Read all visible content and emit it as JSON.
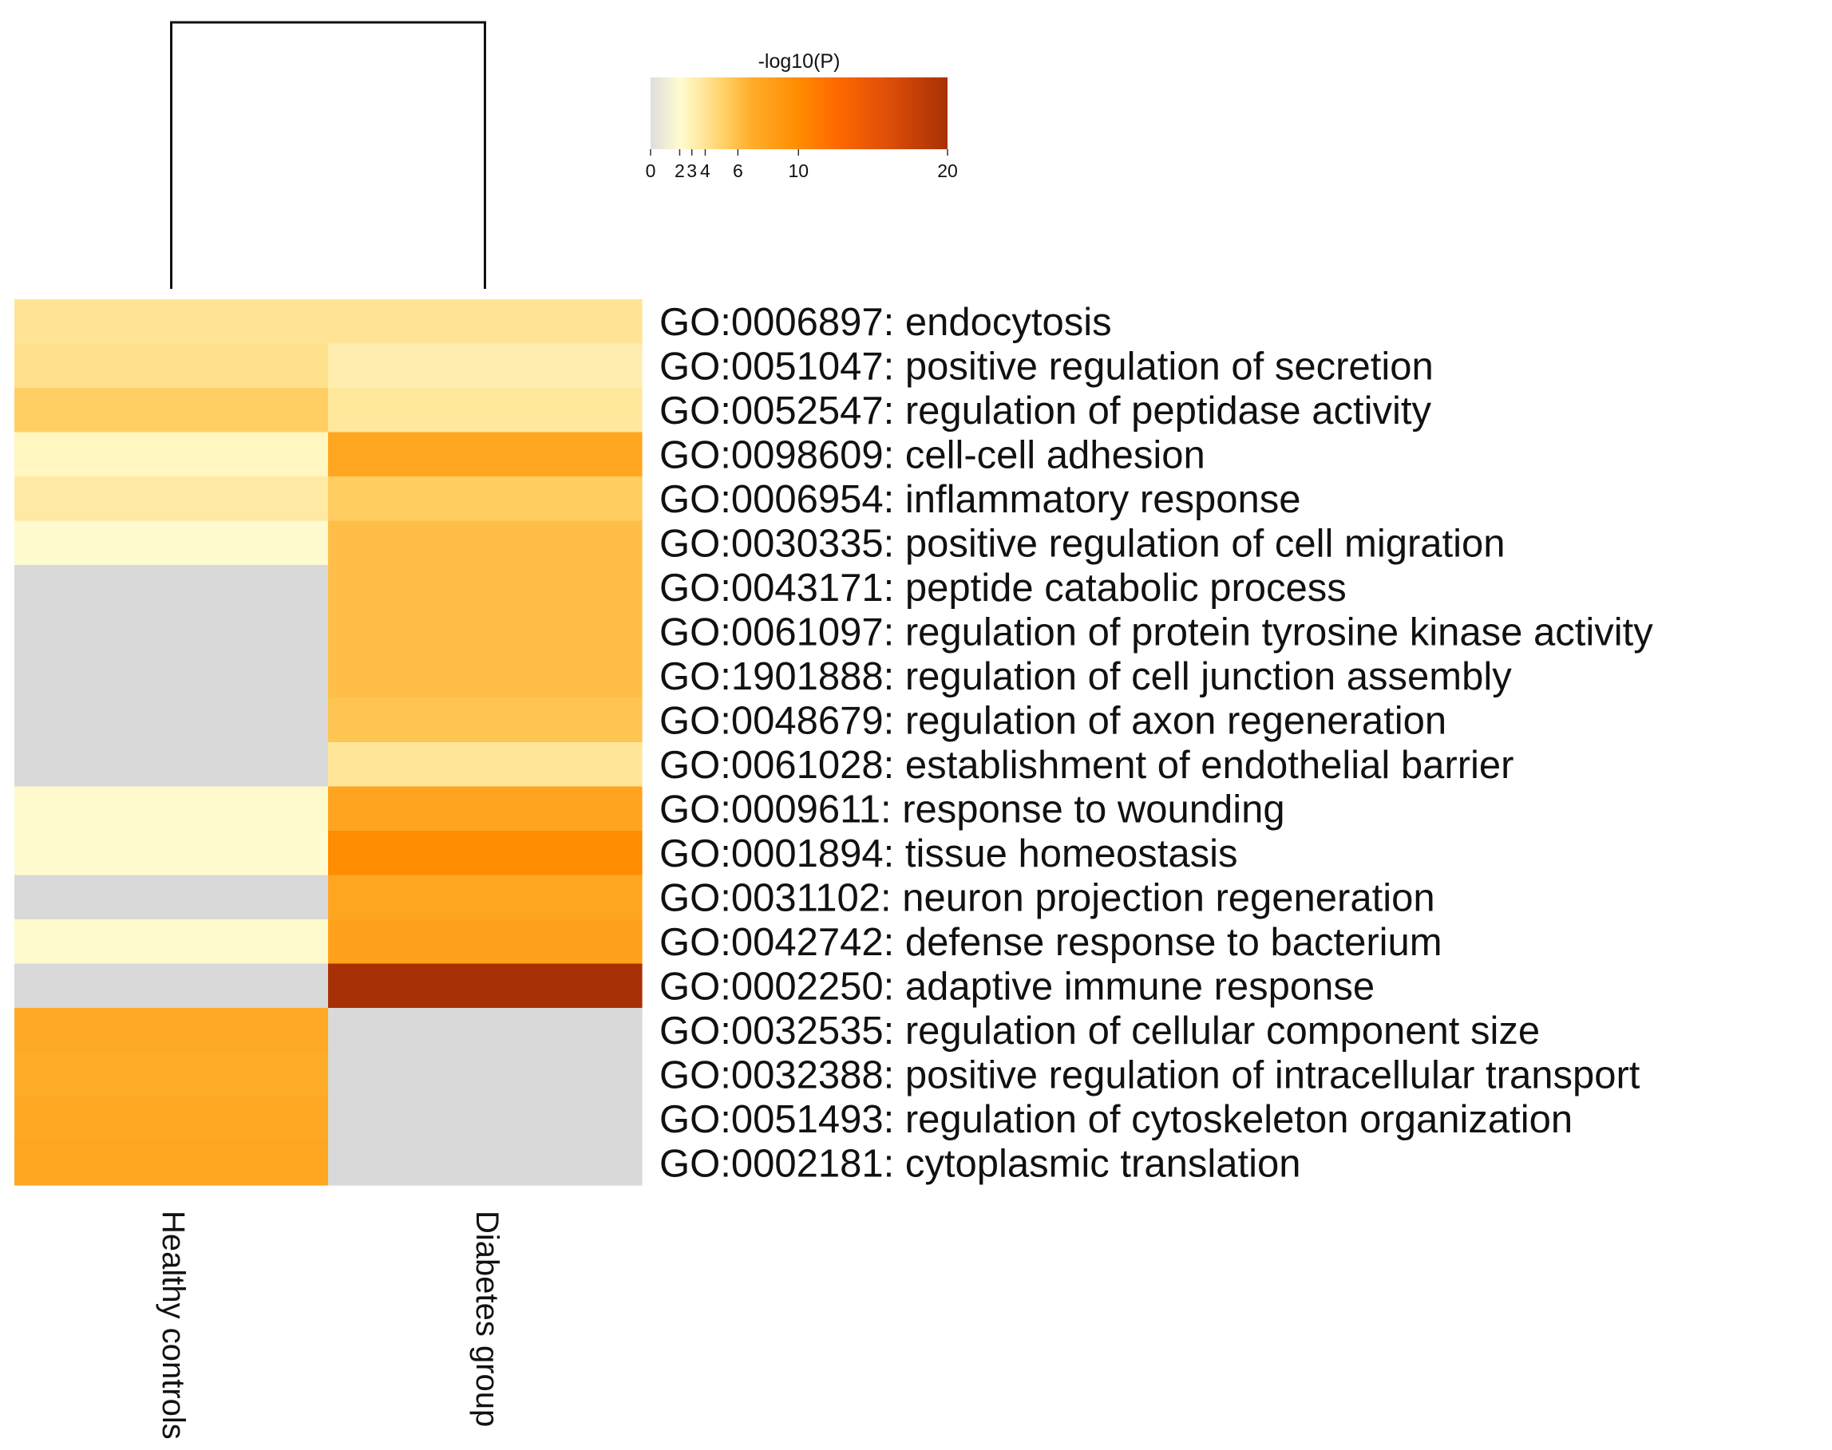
{
  "chart_data": {
    "type": "heatmap",
    "title": "",
    "color_scale": {
      "title": "-log10(P)",
      "tick_labels": [
        "0",
        "2",
        "3",
        "4",
        "6",
        "10",
        "20"
      ],
      "tick_values": [
        0,
        2,
        3,
        4,
        6,
        10,
        20
      ],
      "range": [
        0,
        20
      ],
      "colors": [
        "#dedede",
        "#fffccf",
        "#ffe8a0",
        "#ffd36a",
        "#ffad2a",
        "#ff8c00",
        "#ff6a00",
        "#de4e08",
        "#a83006"
      ]
    },
    "missing_color": "#d9d9d9",
    "dendrogram": "columns",
    "columns": [
      "Healthy controls",
      "Diabetes group"
    ],
    "rows": [
      "GO:0006897: endocytosis",
      "GO:0051047: positive regulation of secretion",
      "GO:0052547: regulation of peptidase activity",
      "GO:0098609: cell-cell adhesion",
      "GO:0006954: inflammatory response",
      "GO:0030335: positive regulation of cell migration",
      "GO:0043171: peptide catabolic process",
      "GO:0061097: regulation of protein tyrosine kinase activity",
      "GO:1901888: regulation of cell junction assembly",
      "GO:0048679: regulation of axon regeneration",
      "GO:0061028: establishment of endothelial barrier",
      "GO:0009611: response to wounding",
      "GO:0001894: tissue homeostasis",
      "GO:0031102: neuron projection regeneration",
      "GO:0042742: defense response to bacterium",
      "GO:0002250: adaptive immune response",
      "GO:0032535: regulation of cellular component size",
      "GO:0032388: positive regulation of intracellular transport",
      "GO:0051493: regulation of cytoskeleton organization",
      "GO:0002181: cytoplasmic translation"
    ],
    "values": [
      [
        4.0,
        4.0
      ],
      [
        4.2,
        3.2
      ],
      [
        5.2,
        3.8
      ],
      [
        2.6,
        7.6
      ],
      [
        3.6,
        5.3
      ],
      [
        2.0,
        6.0
      ],
      [
        null,
        6.0
      ],
      [
        null,
        6.0
      ],
      [
        null,
        6.0
      ],
      [
        null,
        5.7
      ],
      [
        null,
        3.9
      ],
      [
        2.2,
        7.8
      ],
      [
        2.0,
        10.0
      ],
      [
        null,
        7.6
      ],
      [
        2.2,
        8.0
      ],
      [
        null,
        20.0
      ],
      [
        7.2,
        null
      ],
      [
        7.0,
        null
      ],
      [
        7.4,
        null
      ],
      [
        7.6,
        null
      ]
    ]
  }
}
